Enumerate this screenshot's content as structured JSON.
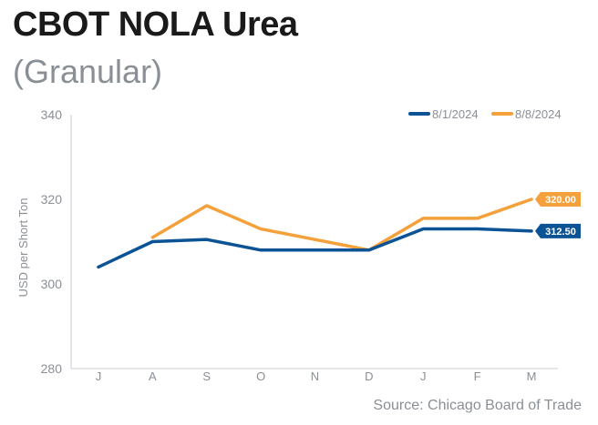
{
  "header": {
    "title": "CBOT NOLA Urea",
    "subtitle": "(Granular)"
  },
  "source": "Source: Chicago Board of Trade",
  "colors": {
    "series_1": "#0b5394",
    "series_2": "#f4a03b",
    "axis": "#c8ccd1"
  },
  "chart_data": {
    "type": "line",
    "title": "CBOT NOLA Urea",
    "subtitle": "(Granular)",
    "ylabel": "USD per Short Ton",
    "xlabel": "",
    "categories": [
      "J",
      "A",
      "S",
      "O",
      "N",
      "D",
      "J",
      "F",
      "M"
    ],
    "ylim": [
      280,
      340
    ],
    "yticks": [
      280,
      300,
      320,
      340
    ],
    "grid": false,
    "legend_position": "top-right",
    "series": [
      {
        "name": "8/1/2024",
        "color": "#0b5394",
        "values": [
          304,
          310,
          310.5,
          308,
          308,
          308,
          313,
          313,
          312.5
        ],
        "end_label": "312.50"
      },
      {
        "name": "8/8/2024",
        "color": "#f4a03b",
        "values": [
          null,
          311,
          318.5,
          313,
          310.5,
          308,
          315.5,
          315.5,
          320
        ],
        "end_label": "320.00"
      }
    ]
  }
}
